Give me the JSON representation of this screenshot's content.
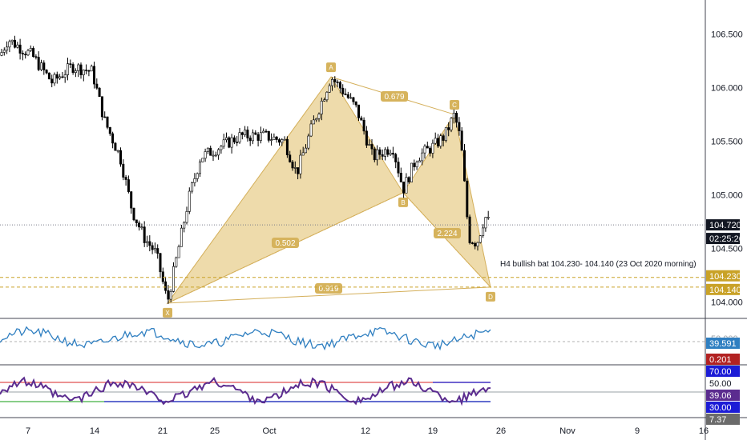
{
  "chart_data": {
    "type": "candlestick",
    "symbol_note": "H4 bullish bat 104.230- 104.140 (23 Oct 2020 morning)",
    "price_axis": {
      "ticks": [
        "106.500",
        "106.000",
        "105.500",
        "105.000",
        "104.500",
        "104.000"
      ],
      "ylim": [
        103.87,
        106.78
      ]
    },
    "time_axis": {
      "ticks": [
        "7",
        "14",
        "21",
        "25",
        "Oct",
        "12",
        "19",
        "26",
        "Nov",
        "9",
        "16"
      ]
    },
    "last_price": "104.720",
    "countdown": "02:25:26",
    "levels": [
      {
        "label": "104.230",
        "value": 104.23,
        "color": "#c9a227"
      },
      {
        "label": "104.140",
        "value": 104.14,
        "color": "#c9a227"
      }
    ],
    "harmonic": {
      "name": "bat",
      "points": [
        {
          "label": "X",
          "value": 103.99
        },
        {
          "label": "A",
          "value": 106.1
        },
        {
          "label": "B",
          "value": 105.02
        },
        {
          "label": "C",
          "value": 105.75
        },
        {
          "label": "D",
          "value": 104.14
        }
      ],
      "ratios": [
        "0.679",
        "0.502",
        "2.224",
        "0.919"
      ],
      "fill_color": "#e8cf8f",
      "line_color": "#d4af5a"
    },
    "candle_colors": {
      "up": "#ffffff",
      "down": "#000000",
      "wick": "#000000"
    },
    "oscillator_1": {
      "value_label": "39.591",
      "level_label": "50.000",
      "color": "#2f7fc1",
      "ylim": [
        20,
        80
      ]
    },
    "oscillator_2": {
      "labels": {
        "top": "0.201",
        "high": "70.00",
        "mid": "50.00",
        "value": "39.06",
        "low": "30.00",
        "bottom": "7.37"
      },
      "line_color": "#5b2c8f",
      "high_color": "#2020d0",
      "overbought_color": "#e05050",
      "oversold_color": "#40b040"
    }
  }
}
